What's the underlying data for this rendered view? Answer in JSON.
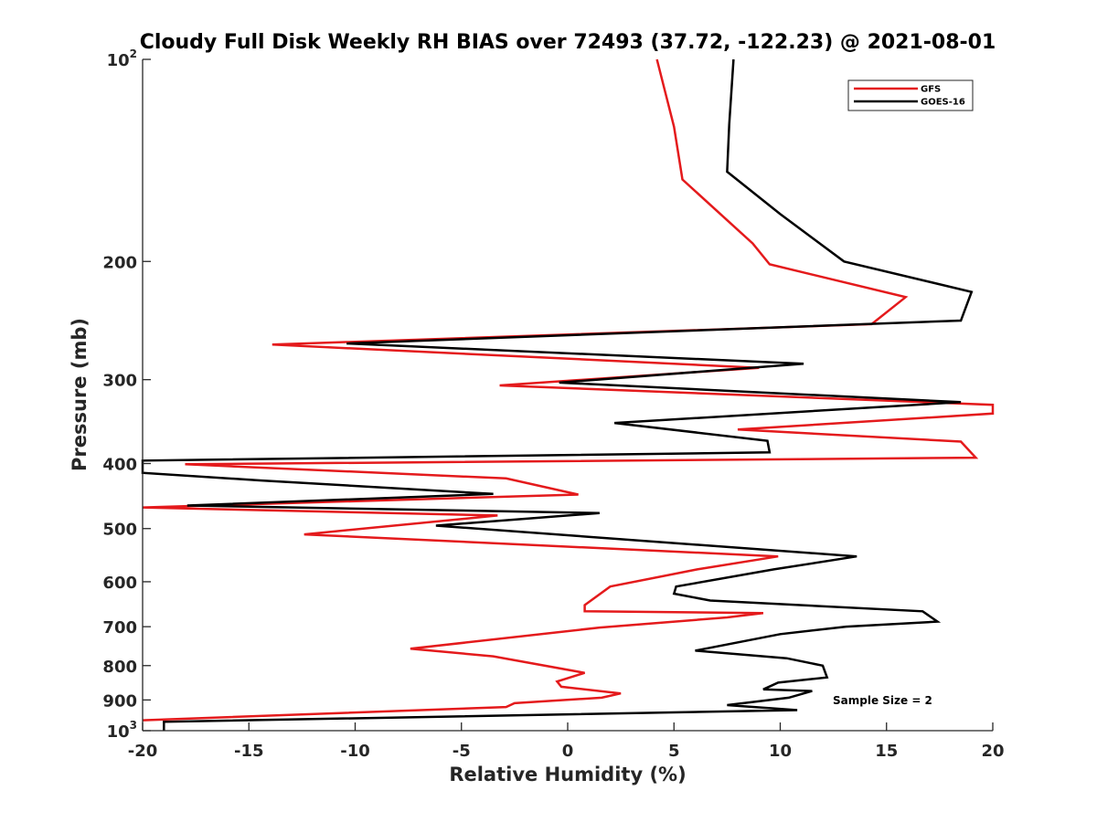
{
  "chart_data": {
    "type": "line",
    "title": "Cloudy Full Disk Weekly RH BIAS over 72493 (37.72, -122.23) @ 2021-08-01",
    "xlabel": "Relative Humidity (%)",
    "ylabel": "Pressure (mb)",
    "xlim": [
      -20,
      20
    ],
    "ylim": [
      100,
      1000
    ],
    "y_scale": "log",
    "y_reversed": true,
    "grid": false,
    "legend_position": "top-right",
    "x_ticks": [
      -20,
      -15,
      -10,
      -5,
      0,
      5,
      10,
      15,
      20
    ],
    "y_ticks": [
      100,
      200,
      300,
      400,
      500,
      600,
      700,
      800,
      900,
      1000
    ],
    "y_tick_labels": {
      "100": {
        "base": "10",
        "exp": "2"
      },
      "200": "200",
      "300": "300",
      "400": "400",
      "500": "500",
      "600": "600",
      "700": "700",
      "800": "800",
      "900": "900",
      "1000": {
        "base": "10",
        "exp": "3"
      }
    },
    "annotation": "Sample Size = 2",
    "series": [
      {
        "name": "GFS",
        "color": "#e41a1c",
        "x": [
          4.2,
          5.0,
          5.4,
          8.7,
          9.5,
          15.9,
          14.3,
          -13.9,
          9.0,
          -3.2,
          20.0,
          20.0,
          8.0,
          18.5,
          19.2,
          -18.0,
          -2.9,
          0.5,
          -20.0,
          -3.3,
          -12.4,
          9.9,
          6.1,
          2.0,
          0.8,
          0.8,
          9.2,
          7.5,
          1.5,
          -7.4,
          -3.5,
          0.8,
          -0.5,
          -0.3,
          2.5,
          1.6,
          -2.5,
          -2.9,
          -20.0
        ],
        "y": [
          100,
          126,
          151,
          188,
          202,
          226,
          248,
          266,
          288,
          306,
          327,
          337,
          356,
          371,
          392,
          401,
          421,
          445,
          465,
          478,
          510,
          550,
          575,
          610,
          650,
          664,
          668,
          678,
          702,
          755,
          775,
          820,
          845,
          860,
          880,
          893,
          910,
          922,
          965
        ]
      },
      {
        "name": "GOES-16",
        "color": "#000000",
        "x": [
          7.8,
          7.6,
          7.5,
          10.0,
          13.0,
          19.0,
          18.5,
          -10.4,
          11.1,
          -0.4,
          18.5,
          2.2,
          9.4,
          9.5,
          -20.0,
          -20.0,
          -14.4,
          -3.5,
          -17.9,
          1.5,
          -6.2,
          13.6,
          9.7,
          5.1,
          5.0,
          6.7,
          16.7,
          17.4,
          13.1,
          10.0,
          6.0,
          10.3,
          12.0,
          12.2,
          9.9,
          9.2,
          11.5,
          10.4,
          7.5,
          10.8,
          -19.0,
          -19.0
        ],
        "y": [
          100,
          125,
          147,
          170,
          200,
          222,
          245,
          265,
          284,
          303,
          324,
          348,
          370,
          385,
          396,
          413,
          424,
          444,
          462,
          474,
          495,
          550,
          575,
          610,
          625,
          640,
          664,
          688,
          700,
          718,
          760,
          780,
          800,
          833,
          848,
          868,
          873,
          893,
          916,
          932,
          970,
          1000
        ]
      }
    ]
  }
}
